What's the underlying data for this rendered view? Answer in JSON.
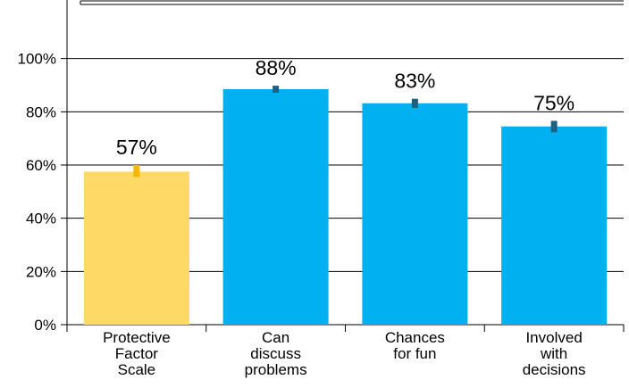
{
  "chart_data": {
    "type": "bar",
    "categories": [
      [
        "Protective",
        "Factor",
        "Scale"
      ],
      [
        "Can",
        "discuss",
        "problems"
      ],
      [
        "Chances",
        "for fun"
      ],
      [
        "Involved",
        "with",
        "decisions"
      ]
    ],
    "values": [
      57.5,
      88.5,
      83.2,
      74.5
    ],
    "data_labels": [
      "57%",
      "88%",
      "83%",
      "75%"
    ],
    "error_bars": [
      {
        "low": 55.5,
        "high": 60.0
      },
      {
        "low": 87.2,
        "high": 89.8
      },
      {
        "low": 81.5,
        "high": 84.9
      },
      {
        "low": 72.3,
        "high": 76.6
      }
    ],
    "ylim": [
      0,
      120
    ],
    "yticks": [
      0,
      20,
      40,
      60,
      80,
      100
    ],
    "ytick_labels": [
      "0%",
      "20%",
      "40%",
      "60%",
      "80%",
      "100%"
    ],
    "grid": true,
    "title": "",
    "xlabel": "",
    "ylabel": "",
    "colors": {
      "bars": [
        "#FFD966",
        "#00B0F0",
        "#00B0F0",
        "#00B0F0"
      ],
      "error_bars": [
        "#F5B800",
        "#1F5F7F",
        "#1F5F7F",
        "#1F5F7F"
      ],
      "grid": "#000000",
      "axis": "#000000"
    }
  }
}
